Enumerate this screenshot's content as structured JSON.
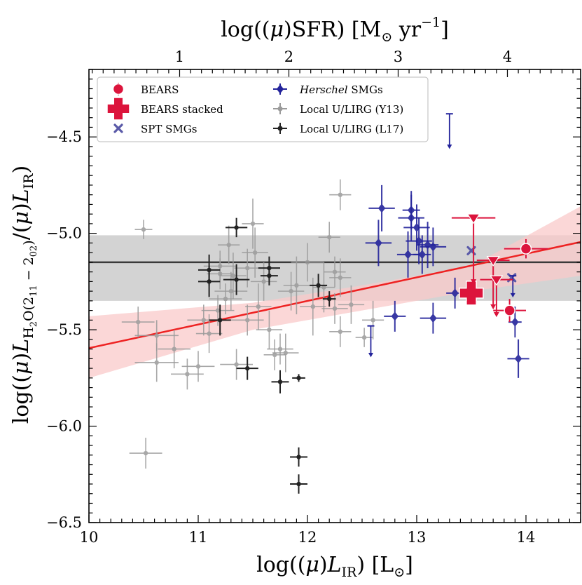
{
  "chart_data": {
    "type": "scatter",
    "xlabel": "log((μ)L_IR) [L_⊙]",
    "ylabel": "log((μ)L_H2O(2_11 − 2_02)/(μ)L_IR)",
    "top_xlabel": "log((μ)SFR) [M_⊙ yr^−1]",
    "xlim": [
      10,
      14.5
    ],
    "ylim": [
      -6.5,
      -4.15
    ],
    "xticks": [
      10,
      11,
      12,
      13,
      14
    ],
    "yticks": [
      -4.5,
      -5.0,
      -5.5,
      -6.0,
      -6.5
    ],
    "top_xticks": [
      1,
      2,
      3,
      4
    ],
    "colors": {
      "bears": "#dc143c",
      "spt": "#5a5aa8",
      "herschel": "#23239b",
      "y13": "#9a9a9a",
      "l17": "#222222",
      "fit_line": "#ee2222",
      "fit_band": "#f9c9c9",
      "mean_line": "#3a3a3a",
      "mean_band": "#d3d3d3"
    },
    "legend": {
      "left": [
        {
          "key": "bears",
          "label": "BEARS"
        },
        {
          "key": "bears_stacked",
          "label": "BEARS stacked"
        },
        {
          "key": "spt",
          "label": "SPT SMGs"
        }
      ],
      "right": [
        {
          "key": "herschel",
          "label_italic": "Herschel",
          "label": " SMGs"
        },
        {
          "key": "y13",
          "label": "Local U/LIRG (Y13)"
        },
        {
          "key": "l17",
          "label": "Local U/LIRG (L17)"
        }
      ]
    },
    "fit": {
      "line": [
        [
          10.0,
          -5.595
        ],
        [
          14.5,
          -5.045
        ]
      ],
      "band_upper": [
        [
          10.0,
          -5.43
        ],
        [
          11.5,
          -5.36
        ],
        [
          12.5,
          -5.27
        ],
        [
          13.5,
          -5.17
        ],
        [
          14.5,
          -4.86
        ]
      ],
      "band_lower": [
        [
          10.0,
          -5.75
        ],
        [
          11.5,
          -5.5
        ],
        [
          12.5,
          -5.4
        ],
        [
          13.5,
          -5.3
        ],
        [
          14.5,
          -5.22
        ]
      ]
    },
    "mean": {
      "value": -5.15,
      "band": [
        -5.35,
        -5.01
      ]
    },
    "series": [
      {
        "name": "Local U/LIRG (Y13)",
        "key": "y13",
        "marker": "dot",
        "points": [
          [
            10.45,
            -5.46,
            0.15,
            0.08
          ],
          [
            10.5,
            -4.98,
            0.08,
            0.05
          ],
          [
            10.52,
            -6.14,
            0.15,
            0.08
          ],
          [
            10.62,
            -5.53,
            0.2,
            0.08
          ],
          [
            10.62,
            -5.67,
            0.2,
            0.1
          ],
          [
            10.78,
            -5.6,
            0.15,
            0.1
          ],
          [
            10.9,
            -5.73,
            0.15,
            0.08
          ],
          [
            11.0,
            -5.69,
            0.15,
            0.08
          ],
          [
            11.05,
            -5.45,
            0.15,
            0.08
          ],
          [
            11.1,
            -5.52,
            0.12,
            0.1
          ],
          [
            11.18,
            -5.4,
            0.15,
            0.08
          ],
          [
            11.2,
            -5.17,
            0.15,
            0.08
          ],
          [
            11.2,
            -5.21,
            0.12,
            0.08
          ],
          [
            11.25,
            -5.34,
            0.15,
            0.08
          ],
          [
            11.28,
            -5.06,
            0.1,
            0.1
          ],
          [
            11.3,
            -5.3,
            0.15,
            0.1
          ],
          [
            11.32,
            -5.22,
            0.12,
            0.12
          ],
          [
            11.35,
            -5.68,
            0.15,
            0.08
          ],
          [
            11.45,
            -5.18,
            0.12,
            0.1
          ],
          [
            11.45,
            -5.45,
            0.15,
            0.08
          ],
          [
            11.5,
            -4.95,
            0.1,
            0.13
          ],
          [
            11.52,
            -5.1,
            0.12,
            0.13
          ],
          [
            11.55,
            -5.38,
            0.12,
            0.12
          ],
          [
            11.6,
            -5.25,
            0.12,
            0.1
          ],
          [
            11.65,
            -5.5,
            0.12,
            0.1
          ],
          [
            11.7,
            -5.63,
            0.1,
            0.08
          ],
          [
            11.75,
            -5.6,
            0.12,
            0.08
          ],
          [
            11.8,
            -5.62,
            0.12,
            0.1
          ],
          [
            11.85,
            -5.3,
            0.12,
            0.1
          ],
          [
            11.9,
            -5.27,
            0.12,
            0.15
          ],
          [
            12.0,
            -5.15,
            0.15,
            0.1
          ],
          [
            12.05,
            -5.38,
            0.12,
            0.15
          ],
          [
            12.15,
            -5.28,
            0.1,
            0.13
          ],
          [
            12.2,
            -5.02,
            0.1,
            0.08
          ],
          [
            12.25,
            -5.2,
            0.1,
            0.08
          ],
          [
            12.25,
            -5.39,
            0.12,
            0.08
          ],
          [
            12.3,
            -4.8,
            0.1,
            0.08
          ],
          [
            12.3,
            -5.23,
            0.1,
            0.1
          ],
          [
            12.3,
            -5.51,
            0.1,
            0.08
          ],
          [
            12.4,
            -5.37,
            0.12,
            0.1
          ],
          [
            12.52,
            -5.54,
            0.08,
            0.05
          ],
          [
            12.6,
            -5.45,
            0.1,
            0.1
          ]
        ]
      },
      {
        "name": "Local U/LIRG (L17)",
        "key": "l17",
        "marker": "dot",
        "points": [
          [
            11.1,
            -5.19,
            0.1,
            0.08
          ],
          [
            11.1,
            -5.25,
            0.1,
            0.08
          ],
          [
            11.2,
            -5.45,
            0.1,
            0.08
          ],
          [
            11.35,
            -5.24,
            0.12,
            0.08
          ],
          [
            11.35,
            -4.97,
            0.1,
            0.05
          ],
          [
            11.45,
            -5.7,
            0.1,
            0.06
          ],
          [
            11.65,
            -5.22,
            0.08,
            0.05
          ],
          [
            11.65,
            -5.18,
            0.1,
            0.06
          ],
          [
            11.75,
            -5.77,
            0.08,
            0.06
          ],
          [
            11.92,
            -5.75,
            0.06,
            0.02
          ],
          [
            11.92,
            -6.16,
            0.08,
            0.05
          ],
          [
            11.92,
            -6.3,
            0.08,
            0.05
          ],
          [
            12.1,
            -5.27,
            0.08,
            0.06
          ],
          [
            12.2,
            -5.34,
            0.06,
            0.04
          ]
        ]
      },
      {
        "name": "Herschel SMGs",
        "key": "herschel",
        "marker": "diamond",
        "points": [
          [
            12.65,
            -5.05,
            0.12,
            0.12
          ],
          [
            12.68,
            -4.87,
            0.12,
            0.12
          ],
          [
            12.8,
            -5.43,
            0.1,
            0.08
          ],
          [
            12.92,
            -5.11,
            0.1,
            0.12
          ],
          [
            12.95,
            -4.88,
            0.08,
            0.1
          ],
          [
            12.95,
            -4.92,
            0.12,
            0.12
          ],
          [
            13.0,
            -4.97,
            0.12,
            0.12
          ],
          [
            13.02,
            -5.04,
            0.12,
            0.12
          ],
          [
            13.05,
            -5.11,
            0.08,
            0.1
          ],
          [
            13.1,
            -5.06,
            0.1,
            0.12
          ],
          [
            13.15,
            -5.07,
            0.12,
            0.1
          ],
          [
            13.15,
            -5.44,
            0.12,
            0.08
          ],
          [
            13.35,
            -5.31,
            0.08,
            0.08
          ],
          [
            13.9,
            -5.46,
            0.06,
            0.08
          ],
          [
            13.93,
            -5.65,
            0.1,
            0.1
          ]
        ]
      },
      {
        "name": "SPT SMGs",
        "key": "spt",
        "marker": "x",
        "points": [
          [
            13.5,
            -5.09
          ],
          [
            13.87,
            -5.23
          ]
        ]
      },
      {
        "name": "BEARS",
        "key": "bears",
        "marker": "circle",
        "points": [
          [
            14.0,
            -5.08,
            0.2,
            0.05
          ],
          [
            13.85,
            -5.4,
            0.15,
            0.06
          ]
        ]
      },
      {
        "name": "BEARS stacked",
        "key": "bears_stacked",
        "marker": "plus",
        "points": [
          [
            13.5,
            -5.31
          ]
        ]
      }
    ],
    "upper_limits": [
      {
        "series": "herschel",
        "x": 12.58,
        "y": -5.48,
        "down_to": -5.63
      },
      {
        "series": "herschel",
        "x": 13.3,
        "y": -4.38,
        "down_to": -4.55
      },
      {
        "series": "herschel",
        "x": 13.88,
        "y": -5.22,
        "down_to": -5.32
      },
      {
        "series": "bears",
        "x": 13.52,
        "y": -4.92,
        "x_err": 0.2,
        "down_to": -5.25
      },
      {
        "series": "bears",
        "x": 13.7,
        "y": -5.14,
        "x_err": 0.15,
        "down_to": -5.38
      },
      {
        "series": "bears",
        "x": 13.73,
        "y": -5.24,
        "x_err": 0.15,
        "down_to": -5.42
      }
    ]
  }
}
